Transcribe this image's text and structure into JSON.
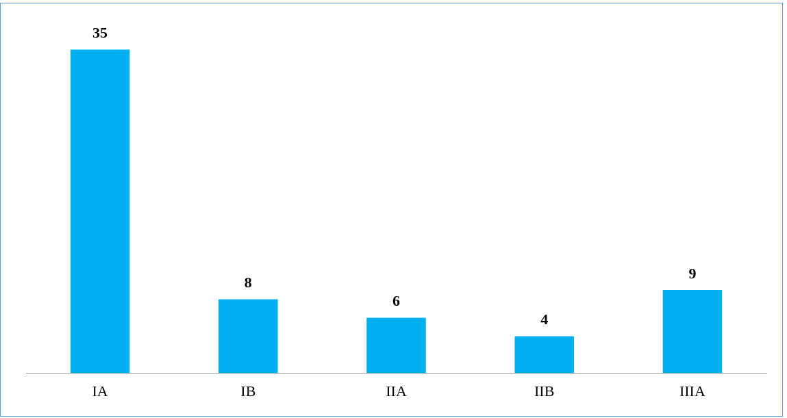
{
  "chart_data": {
    "type": "bar",
    "categories": [
      "IA",
      "IB",
      "IIA",
      "IIB",
      "IIIA"
    ],
    "values": [
      35,
      8,
      6,
      4,
      9
    ],
    "color": "#00b0f0",
    "data_labels": true,
    "grid": false,
    "legend": false
  }
}
